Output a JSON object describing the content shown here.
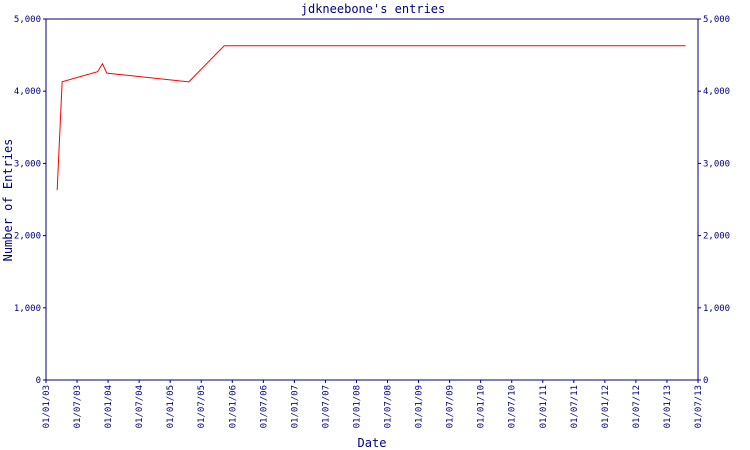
{
  "chart_data": {
    "type": "line",
    "title": "jdkneebone's entries",
    "x_label": "Date",
    "y_label": "Number of Entries",
    "series": [
      {
        "name": "entries",
        "color": "#ff0000",
        "x": [
          2003.18,
          2003.26,
          2003.83,
          2003.91,
          2003.98,
          2005.3,
          2005.87,
          2013.3
        ],
        "values": [
          2630,
          4130,
          4270,
          4380,
          4250,
          4130,
          4630,
          4630
        ]
      }
    ],
    "xlim": [
      2003,
      2013.5
    ],
    "xticks": [
      {
        "value": 2003,
        "label": "01/01/03"
      },
      {
        "value": 2003.5,
        "label": "01/07/03"
      },
      {
        "value": 2004,
        "label": "01/01/04"
      },
      {
        "value": 2004.5,
        "label": "01/07/04"
      },
      {
        "value": 2005,
        "label": "01/01/05"
      },
      {
        "value": 2005.5,
        "label": "01/07/05"
      },
      {
        "value": 2006,
        "label": "01/01/06"
      },
      {
        "value": 2006.5,
        "label": "01/07/06"
      },
      {
        "value": 2007,
        "label": "01/01/07"
      },
      {
        "value": 2007.5,
        "label": "01/07/07"
      },
      {
        "value": 2008,
        "label": "01/01/08"
      },
      {
        "value": 2008.5,
        "label": "01/07/08"
      },
      {
        "value": 2009,
        "label": "01/01/09"
      },
      {
        "value": 2009.5,
        "label": "01/07/09"
      },
      {
        "value": 2010,
        "label": "01/01/10"
      },
      {
        "value": 2010.5,
        "label": "01/07/10"
      },
      {
        "value": 2011,
        "label": "01/01/11"
      },
      {
        "value": 2011.5,
        "label": "01/07/11"
      },
      {
        "value": 2012,
        "label": "01/01/12"
      },
      {
        "value": 2012.5,
        "label": "01/07/12"
      },
      {
        "value": 2013,
        "label": "01/01/13"
      },
      {
        "value": 2013.5,
        "label": "01/07/13"
      }
    ],
    "ylim": [
      0,
      5000
    ],
    "yticks": [
      0,
      {
        "value": 1000,
        "label": "1,000"
      },
      {
        "value": 2000,
        "label": "2,000"
      },
      {
        "value": 3000,
        "label": "3,000"
      },
      {
        "value": 4000,
        "label": "4,000"
      },
      {
        "value": 5000,
        "label": "5,000"
      }
    ],
    "axis_color": "#000080",
    "grid": false
  }
}
